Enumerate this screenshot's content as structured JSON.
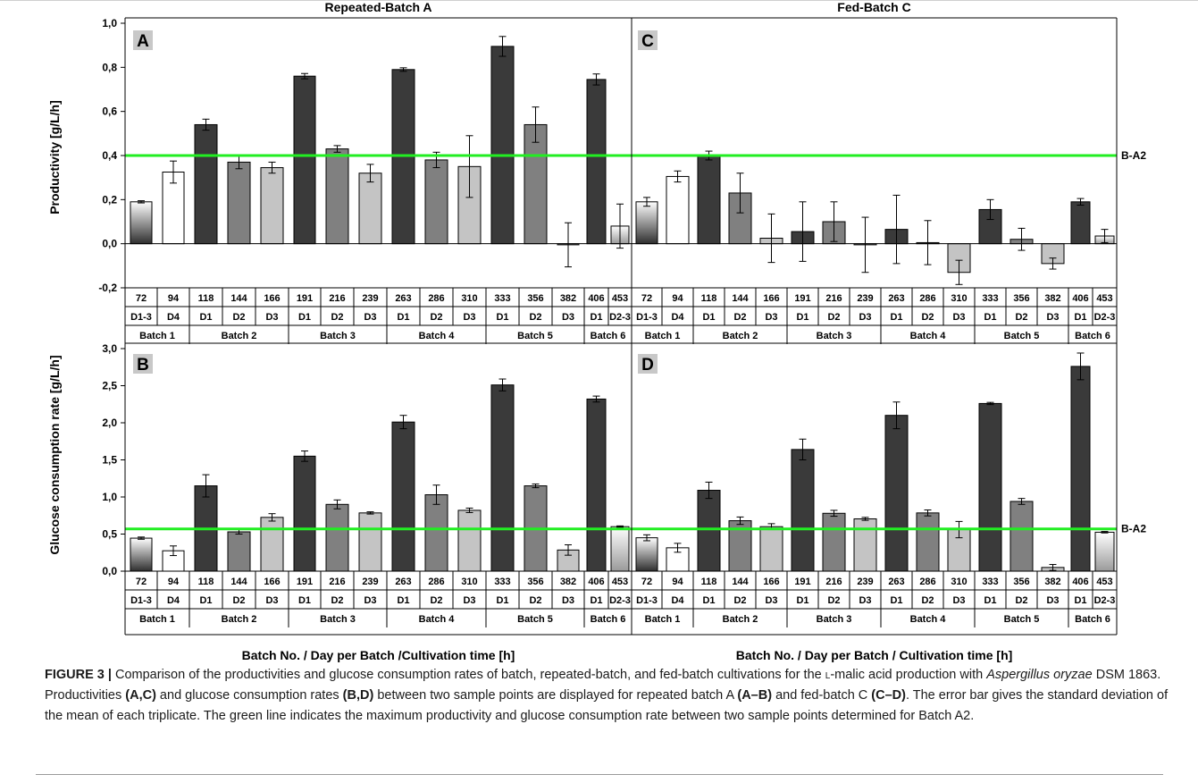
{
  "figure": {
    "panel_titles": [
      "Repeated-Batch A",
      "Fed-Batch C"
    ],
    "ylabel_top": "Productivity [g/L/h]",
    "ylabel_bottom": "Glucose consumption rate [g/L/h]",
    "xlabel_left": "Batch No. / Day per Batch /Cultivation time [h]",
    "xlabel_right": "Batch No. / Day per Batch / Cultivation time [h]",
    "ref_label": "B-A2",
    "times": [
      "72",
      "94",
      "118",
      "144",
      "166",
      "191",
      "216",
      "239",
      "263",
      "286",
      "310",
      "333",
      "356",
      "382",
      "406",
      "453"
    ],
    "days": [
      "D1-3",
      "D4",
      "D1",
      "D2",
      "D3",
      "D1",
      "D2",
      "D3",
      "D1",
      "D2",
      "D3",
      "D1",
      "D2",
      "D3",
      "D1",
      "D2-3"
    ],
    "batches": [
      "Batch 1",
      "Batch 2",
      "Batch 3",
      "Batch 4",
      "Batch 5",
      "Batch 6"
    ],
    "colors": {
      "D1": "#3a3a3a",
      "D2": "#808080",
      "D3": "#c4c4c4",
      "D4": "#ffffff",
      "ref_line": "#22ee22"
    }
  },
  "chart_data": [
    {
      "panel": "A",
      "type": "bar",
      "ylim": [
        -0.2,
        1.0
      ],
      "yticks": [
        "1,0",
        "0,8",
        "0,6",
        "0,4",
        "0,2",
        "0,0",
        "-0,2"
      ],
      "reference_line": 0.4,
      "values": [
        0.19,
        0.325,
        0.54,
        0.37,
        0.345,
        0.76,
        0.43,
        0.32,
        0.79,
        0.38,
        0.35,
        0.895,
        0.54,
        -0.005,
        0.745,
        0.08
      ],
      "errors": [
        0.005,
        0.05,
        0.025,
        0.03,
        0.025,
        0.012,
        0.015,
        0.04,
        0.008,
        0.035,
        0.14,
        0.045,
        0.08,
        0.1,
        0.025,
        0.1
      ]
    },
    {
      "panel": "C",
      "type": "bar",
      "ylim": [
        -0.2,
        1.0
      ],
      "yticks": [
        "1,0",
        "0,8",
        "0,6",
        "0,4",
        "0,2",
        "0,0",
        "-0,2"
      ],
      "reference_line": 0.4,
      "values": [
        0.19,
        0.305,
        0.4,
        0.23,
        0.025,
        0.055,
        0.1,
        -0.005,
        0.065,
        0.005,
        -0.13,
        0.155,
        0.02,
        -0.09,
        0.19,
        0.035
      ],
      "errors": [
        0.02,
        0.025,
        0.02,
        0.09,
        0.11,
        0.135,
        0.09,
        0.125,
        0.155,
        0.1,
        0.055,
        0.045,
        0.05,
        0.025,
        0.015,
        0.03
      ]
    },
    {
      "panel": "B",
      "type": "bar",
      "ylim": [
        0.0,
        3.0
      ],
      "yticks": [
        "3,0",
        "2,5",
        "2,0",
        "1,5",
        "1,0",
        "0,5",
        "0,0"
      ],
      "reference_line": 0.57,
      "values": [
        0.445,
        0.275,
        1.15,
        0.53,
        0.725,
        1.55,
        0.9,
        0.785,
        2.01,
        1.03,
        0.82,
        2.51,
        1.15,
        0.285,
        2.32,
        0.6
      ],
      "errors": [
        0.015,
        0.065,
        0.15,
        0.03,
        0.05,
        0.07,
        0.06,
        0.015,
        0.09,
        0.13,
        0.03,
        0.08,
        0.025,
        0.07,
        0.04,
        0.01
      ]
    },
    {
      "panel": "D",
      "type": "bar",
      "ylim": [
        0.0,
        3.0
      ],
      "yticks": [
        "3,0",
        "2,5",
        "2,0",
        "1,5",
        "1,0",
        "0,5",
        "0,0"
      ],
      "reference_line": 0.57,
      "values": [
        0.45,
        0.315,
        1.09,
        0.68,
        0.6,
        1.64,
        0.78,
        0.705,
        2.1,
        0.785,
        0.56,
        2.26,
        0.94,
        0.05,
        2.76,
        0.525
      ],
      "errors": [
        0.04,
        0.06,
        0.11,
        0.05,
        0.04,
        0.14,
        0.04,
        0.02,
        0.18,
        0.04,
        0.11,
        0.015,
        0.04,
        0.04,
        0.18,
        0.01
      ]
    }
  ],
  "caption": {
    "label": "FIGURE 3 |",
    "t1": " Comparison of the productivities and glucose consumption rates of batch, repeated-batch, and fed-batch cultivations for the ",
    "smallcaps": "l",
    "t2": "-malic acid production with ",
    "species": "Aspergillus oryzae",
    "t3": " DSM 1863. Productivities ",
    "b1": "(A,C)",
    "t4": " and glucose consumption rates ",
    "b2": "(B,D)",
    "t5": " between two sample points are displayed for repeated batch A ",
    "b3": "(A–B)",
    "t6": " and fed-batch C ",
    "b4": "(C–D)",
    "t7": ". The error bar gives the standard deviation of the mean of each triplicate. The green line indicates the maximum productivity and glucose consumption rate between two sample points determined for Batch A2."
  }
}
